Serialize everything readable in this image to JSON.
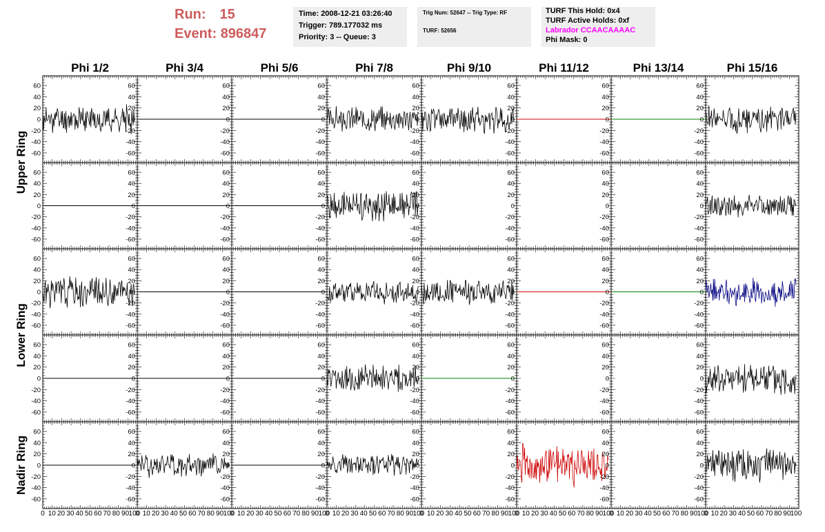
{
  "header": {
    "run_label": "Run:",
    "run_value": "15",
    "event_label": "Event:",
    "event_value": "896847",
    "time": "Time: 2008-12-21 03:26:40",
    "trigger": "Trigger: 789.177032 ms",
    "priority": "Priority: 3 -- Queue: 3",
    "trig_num": "Trig Num: 52647 -- Trig Type: RF",
    "turf": "TURF: 52656",
    "turf_this_hold": "TURF This Hold: 0x4",
    "turf_active_holds": "TURF Active Holds: 0xf",
    "labrador": "Labrador CCAACAAAAC",
    "phi_mask": "Phi Mask: 0"
  },
  "colors": {
    "header_text": "#cd5c5c",
    "panel_bg": "#eeeeee",
    "labrador": "#ff00ff",
    "trace_black": "#000000",
    "trace_red": "#cc0000",
    "trace_green": "#008000",
    "trace_blue": "#000080"
  },
  "chart_data": {
    "type": "line",
    "columns": [
      "Phi 1/2",
      "Phi 3/4",
      "Phi 5/6",
      "Phi 7/8",
      "Phi 9/10",
      "Phi 11/12",
      "Phi 13/14",
      "Phi 15/16"
    ],
    "row_labels": [
      {
        "label": "Upper Ring",
        "rows": [
          0,
          1
        ]
      },
      {
        "label": "Lower Ring",
        "rows": [
          2,
          3
        ]
      },
      {
        "label": "Nadir Ring",
        "rows": [
          4
        ]
      }
    ],
    "ylim": [
      -70,
      70
    ],
    "y_ticks": [
      -60,
      -40,
      -20,
      0,
      20,
      40,
      60
    ],
    "xlim": [
      0,
      100
    ],
    "x_tick_labels": [
      "0",
      "10",
      "20",
      "30",
      "40",
      "50",
      "60",
      "70",
      "80",
      "90",
      "100"
    ],
    "grid": false,
    "traces": [
      [
        {
          "color": "black",
          "amp": 20,
          "seed": 11
        },
        {
          "color": "black",
          "amp": 0,
          "seed": 0
        },
        {
          "color": "black",
          "amp": 0,
          "seed": 0
        },
        {
          "color": "black",
          "amp": 18,
          "seed": 14
        },
        {
          "color": "black",
          "amp": 20,
          "seed": 15
        },
        {
          "color": "red",
          "amp": 0,
          "seed": 0
        },
        {
          "color": "green",
          "amp": 0,
          "seed": 0
        },
        {
          "color": "black",
          "amp": 20,
          "seed": 18
        }
      ],
      [
        {
          "color": "black",
          "amp": 0,
          "seed": 0
        },
        {
          "color": "black",
          "amp": 0,
          "seed": 0
        },
        {
          "color": "black",
          "amp": 0,
          "seed": 0
        },
        {
          "color": "black",
          "amp": 22,
          "seed": 24
        },
        {
          "color": "none",
          "amp": 0,
          "seed": 0
        },
        {
          "color": "none",
          "amp": 0,
          "seed": 0
        },
        {
          "color": "none",
          "amp": 0,
          "seed": 0
        },
        {
          "color": "black",
          "amp": 17,
          "seed": 28
        }
      ],
      [
        {
          "color": "black",
          "amp": 24,
          "seed": 31
        },
        {
          "color": "black",
          "amp": 0,
          "seed": 0
        },
        {
          "color": "black",
          "amp": 0,
          "seed": 0
        },
        {
          "color": "black",
          "amp": 18,
          "seed": 34
        },
        {
          "color": "black",
          "amp": 18,
          "seed": 35
        },
        {
          "color": "red",
          "amp": 0,
          "seed": 0
        },
        {
          "color": "green",
          "amp": 0,
          "seed": 0
        },
        {
          "color": "blue",
          "amp": 20,
          "seed": 38
        }
      ],
      [
        {
          "color": "black",
          "amp": 0,
          "seed": 0
        },
        {
          "color": "black",
          "amp": 0,
          "seed": 0
        },
        {
          "color": "black",
          "amp": 0,
          "seed": 0
        },
        {
          "color": "black",
          "amp": 20,
          "seed": 44
        },
        {
          "color": "green",
          "amp": 0,
          "seed": 0
        },
        {
          "color": "none",
          "amp": 0,
          "seed": 0
        },
        {
          "color": "none",
          "amp": 0,
          "seed": 0
        },
        {
          "color": "black",
          "amp": 25,
          "seed": 48
        }
      ],
      [
        {
          "color": "black",
          "amp": 0,
          "seed": 0
        },
        {
          "color": "black",
          "amp": 18,
          "seed": 52
        },
        {
          "color": "black",
          "amp": 0,
          "seed": 0
        },
        {
          "color": "black",
          "amp": 16,
          "seed": 54
        },
        {
          "color": "none",
          "amp": 0,
          "seed": 0
        },
        {
          "color": "red",
          "amp": 30,
          "seed": 56
        },
        {
          "color": "none",
          "amp": 0,
          "seed": 0
        },
        {
          "color": "black",
          "amp": 25,
          "seed": 58
        }
      ]
    ]
  }
}
